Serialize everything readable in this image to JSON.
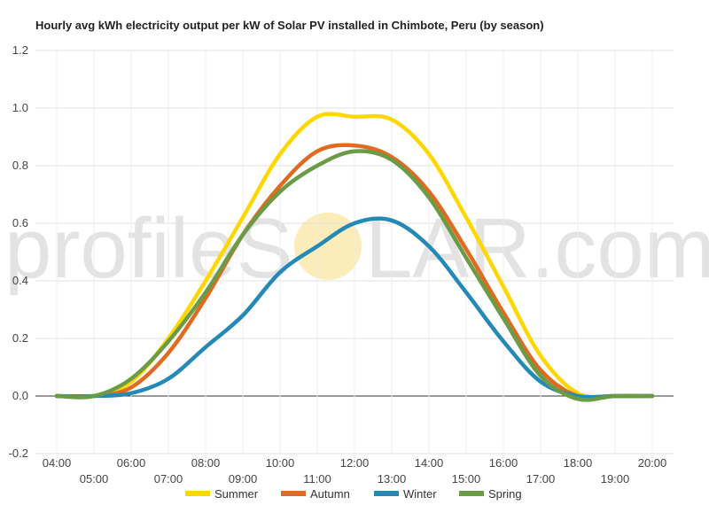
{
  "watermark": {
    "text_left": "profileS",
    "text_right": "LAR.com",
    "sun_color": "#f8e08a"
  },
  "chart_data": {
    "type": "line",
    "title": "Hourly avg kWh electricity output per kW of Solar PV installed in Chimbote, Peru (by season)",
    "xlabel": "",
    "ylabel": "",
    "ylim": [
      -0.2,
      1.2
    ],
    "yticks": [
      -0.2,
      0.0,
      0.2,
      0.4,
      0.6,
      0.8,
      1.0,
      1.2
    ],
    "ytick_labels": [
      "-0.2",
      "0.0",
      "0.2",
      "0.4",
      "0.6",
      "0.8",
      "1.0",
      "1.2"
    ],
    "x": [
      "04:00",
      "05:00",
      "06:00",
      "07:00",
      "08:00",
      "09:00",
      "10:00",
      "11:00",
      "12:00",
      "13:00",
      "14:00",
      "15:00",
      "16:00",
      "17:00",
      "18:00",
      "19:00",
      "20:00"
    ],
    "grid": true,
    "legend": "bottom",
    "series": [
      {
        "name": "Summer",
        "color": "#ffd700",
        "values": [
          0.0,
          0.0,
          0.05,
          0.2,
          0.4,
          0.62,
          0.84,
          0.97,
          0.97,
          0.96,
          0.84,
          0.62,
          0.38,
          0.14,
          0.01,
          0.0,
          0.0
        ]
      },
      {
        "name": "Autumn",
        "color": "#e06a1f",
        "values": [
          0.0,
          0.0,
          0.03,
          0.15,
          0.34,
          0.56,
          0.73,
          0.85,
          0.87,
          0.83,
          0.71,
          0.51,
          0.29,
          0.09,
          0.0,
          0.0,
          0.0
        ]
      },
      {
        "name": "Winter",
        "color": "#2589b5",
        "values": [
          0.0,
          0.0,
          0.01,
          0.06,
          0.17,
          0.28,
          0.43,
          0.52,
          0.6,
          0.61,
          0.52,
          0.36,
          0.19,
          0.05,
          0.0,
          0.0,
          0.0
        ]
      },
      {
        "name": "Spring",
        "color": "#6a9b47",
        "values": [
          0.0,
          0.0,
          0.06,
          0.19,
          0.36,
          0.56,
          0.71,
          0.8,
          0.85,
          0.82,
          0.69,
          0.48,
          0.27,
          0.07,
          -0.01,
          0.0,
          0.0
        ]
      }
    ]
  }
}
